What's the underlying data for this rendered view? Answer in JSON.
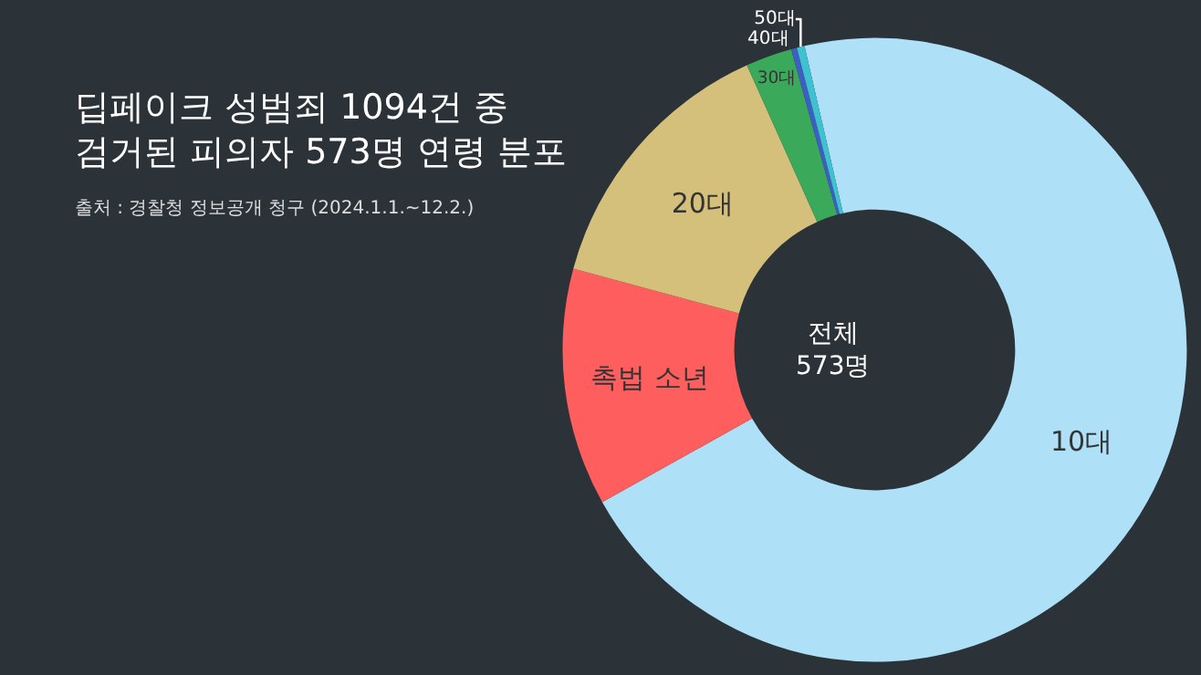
{
  "chart_data": {
    "type": "donut",
    "title": "딥페이크 성범죄 1094건 중\n검거된 피의자 573명 연령 분포",
    "subtitle": "출처 : 경찰청 정보공개 청구 (2024.1.1.~12.2.)",
    "categories": [
      "10대",
      "촉법 소년",
      "20대",
      "30대",
      "40대",
      "50대"
    ],
    "values": [
      70.5,
      12.3,
      14.1,
      2.4,
      0.3,
      0.4
    ],
    "colors": [
      "#aee0f8",
      "#ff5e5e",
      "#d4c07a",
      "#3aaa5a",
      "#3d5fc4",
      "#3fc1d0"
    ],
    "annotations": [
      "전체\n573명"
    ],
    "legend": false
  }
}
